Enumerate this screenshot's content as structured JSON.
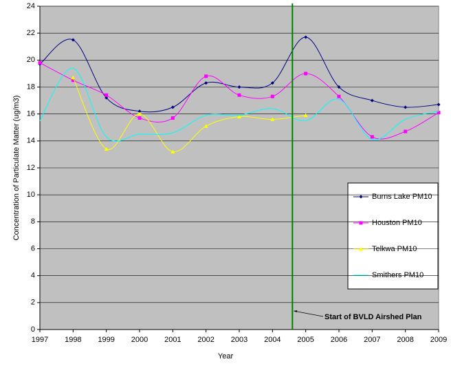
{
  "chart_data": {
    "type": "line",
    "x_label": "Year",
    "y_label": "Concentration of Particulate Matter (ug/m3)",
    "x": [
      1997,
      1998,
      1999,
      2000,
      2001,
      2002,
      2003,
      2004,
      2005,
      2006,
      2007,
      2008,
      2009
    ],
    "series": [
      {
        "name": "Burns Lake PM10",
        "color": "#000080",
        "marker": "diamond",
        "values": [
          19.7,
          21.5,
          17.2,
          16.2,
          16.5,
          18.3,
          18.0,
          18.3,
          21.7,
          18.0,
          17.0,
          16.5,
          16.7
        ]
      },
      {
        "name": "Houston PM10",
        "color": "#ff00ff",
        "marker": "square",
        "values": [
          19.8,
          18.5,
          17.4,
          15.7,
          15.7,
          18.8,
          17.4,
          17.3,
          19.0,
          17.3,
          14.3,
          14.7,
          16.1
        ]
      },
      {
        "name": "Telkwa PM10",
        "color": "#ffff00",
        "marker": "triangle",
        "values": [
          null,
          18.7,
          13.4,
          16.0,
          13.2,
          15.1,
          15.8,
          15.6,
          15.9,
          null,
          null,
          null,
          null
        ]
      },
      {
        "name": "Smithers PM10",
        "color": "#00ffff",
        "marker": "none",
        "values": [
          15.5,
          19.4,
          14.3,
          14.5,
          14.6,
          15.9,
          15.9,
          16.4,
          15.5,
          17.1,
          14.1,
          15.6,
          16.2
        ]
      }
    ],
    "xlim": [
      1997,
      2009
    ],
    "xticks": [
      1997,
      1998,
      1999,
      2000,
      2001,
      2002,
      2003,
      2004,
      2005,
      2006,
      2007,
      2008,
      2009
    ],
    "ylim": [
      0,
      24
    ],
    "yticks": [
      0,
      2,
      4,
      6,
      8,
      10,
      12,
      14,
      16,
      18,
      20,
      22,
      24
    ],
    "grid": true,
    "annotation": {
      "text": "Start of BVLD Airshed Plan",
      "x": 2004.6,
      "color": "#008000"
    }
  }
}
